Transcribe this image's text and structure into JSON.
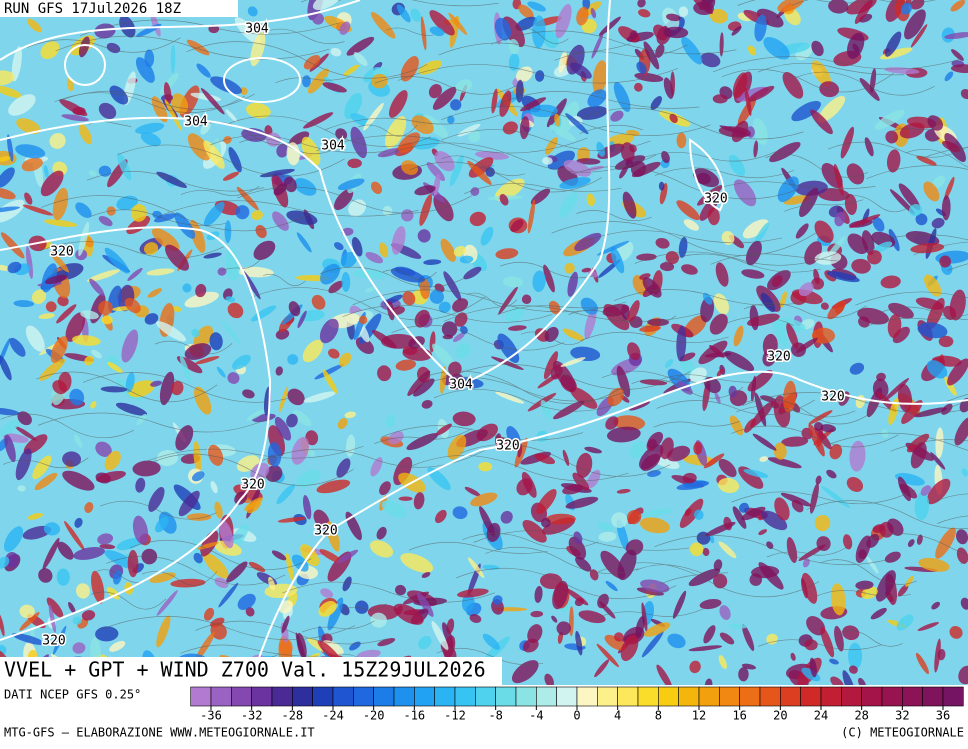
{
  "header": {
    "run": "RUN GFS 17Jul2026 18Z"
  },
  "map": {
    "contour_labels": [
      "304",
      "304",
      "304",
      "320",
      "320",
      "320",
      "320",
      "304",
      "320",
      "320",
      "320",
      "320"
    ]
  },
  "title": "VVEL + GPT + WIND Z700 Val. 15Z29JUL2026",
  "colorbar": {
    "source": "DATI NCEP GFS 0.25°",
    "ticks": [
      -36,
      -32,
      -28,
      -24,
      -20,
      -16,
      -12,
      -8,
      -4,
      0,
      4,
      8,
      12,
      16,
      20,
      24,
      28,
      32,
      36
    ],
    "colors": [
      "#b27ad0",
      "#9a62c2",
      "#8548b0",
      "#6a33a0",
      "#4b2a96",
      "#2e2f9e",
      "#1f3fb8",
      "#1f55d0",
      "#2068e0",
      "#1c7ce8",
      "#1e90ee",
      "#22a2f2",
      "#2ab4f4",
      "#38c4f2",
      "#4ed2ee",
      "#6adce8",
      "#8ae4e4",
      "#aeecea",
      "#d2f4f0",
      "#fcf6c2",
      "#fcf08a",
      "#fce85a",
      "#fadd2a",
      "#f8cc10",
      "#f5b60c",
      "#f3a00e",
      "#f08812",
      "#ec6e16",
      "#e5561a",
      "#db3e20",
      "#d02a28",
      "#c21e34",
      "#b3183e",
      "#a51448",
      "#981450",
      "#8c1456",
      "#80145c",
      "#741462"
    ]
  },
  "footer": {
    "left": "MTG-GFS – ELABORAZIONE WWW.METEOGIORNALE.IT",
    "right": "(C) METEOGIORNALE"
  }
}
